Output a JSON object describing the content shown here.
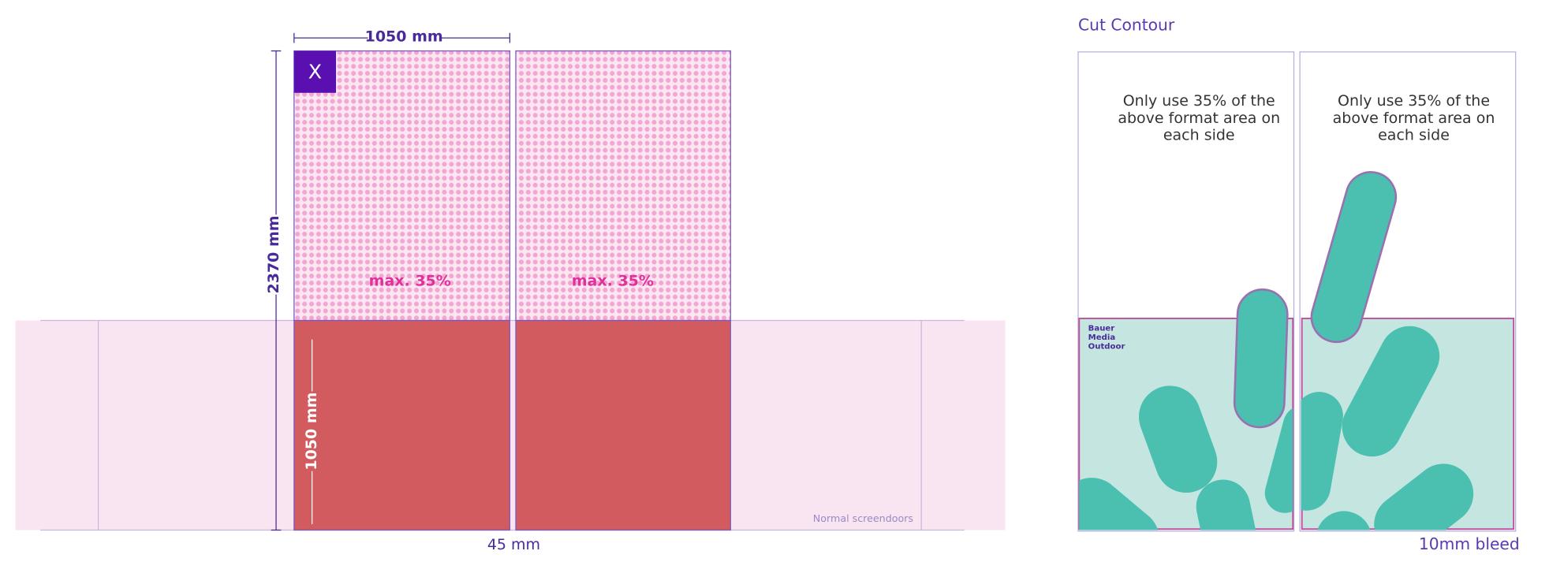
{
  "left_diagram": {
    "width_label": "1050 mm",
    "close_button": "X",
    "height_label": "2370 mm",
    "panels": [
      {
        "label": "max. 35%"
      },
      {
        "label": "max. 35%"
      }
    ],
    "lower_height_label": "1050 mm",
    "screendoor_label": "Normal screendoors",
    "gap_label": "45 mm"
  },
  "right_diagram": {
    "title": "Cut Contour",
    "panels": [
      {
        "note": "Only use 35% of the above format area on each side"
      },
      {
        "note": "Only use 35% of the above format area on each side"
      }
    ],
    "logo": [
      "Bauer",
      "Media",
      "Outdoor"
    ],
    "bleed_label": "10mm bleed"
  }
}
